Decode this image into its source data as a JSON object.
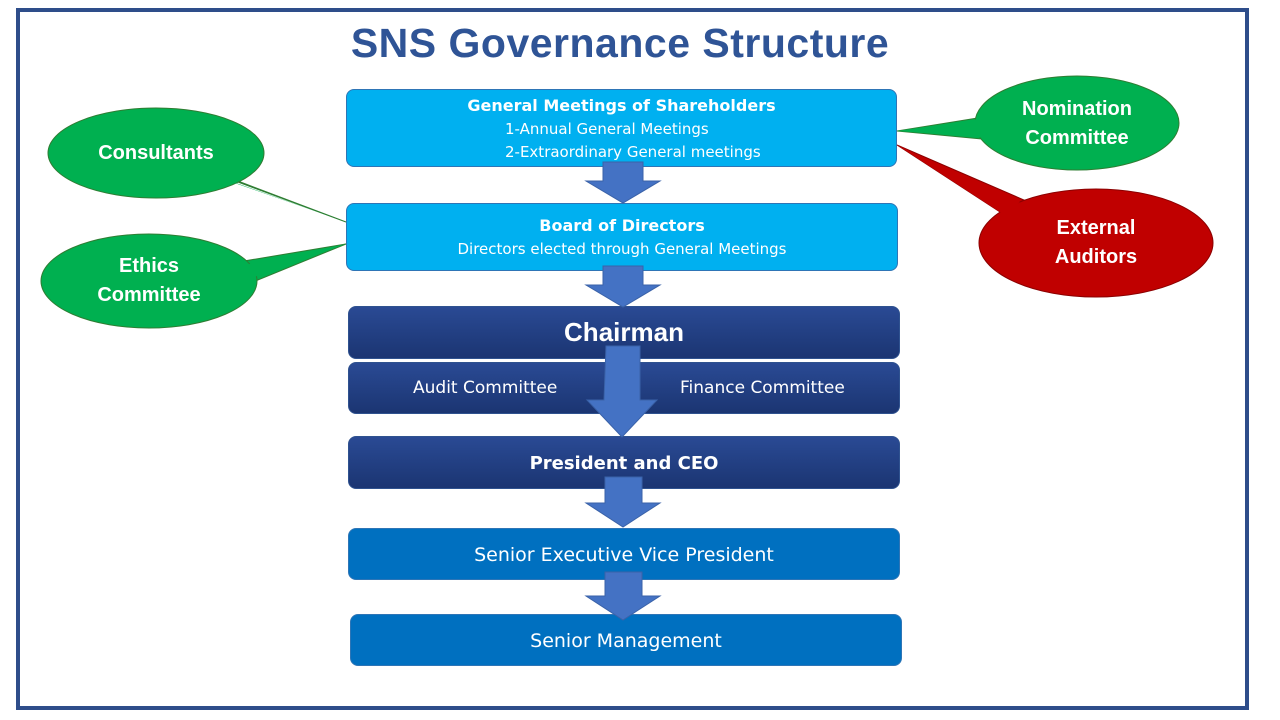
{
  "title": "SNS Governance Structure",
  "colors": {
    "title": "#2f5496",
    "frame": "#2e4d8a",
    "light_box": "#00b0f0",
    "dark_box": "#1f3c80",
    "mid_box": "#0070c0",
    "arrow": "#4472c4",
    "green_callout": "#00b050",
    "red_callout": "#c00000"
  },
  "boxes": {
    "shareholders": {
      "title": "General Meetings of Shareholders",
      "line1": "1-Annual General Meetings",
      "line2": "2-Extraordinary General meetings"
    },
    "board": {
      "title": "Board of Directors",
      "subtitle": "Directors elected through General Meetings"
    },
    "chairman": {
      "title": "Chairman"
    },
    "committees": {
      "audit": "Audit Committee",
      "finance": "Finance Committee"
    },
    "ceo": {
      "title": "President and CEO"
    },
    "sevp": {
      "title": "Senior Executive Vice President"
    },
    "senior_management": {
      "title": "Senior Management"
    }
  },
  "callouts": {
    "consultants": {
      "line1": "Consultants"
    },
    "ethics": {
      "line1": "Ethics",
      "line2": "Committee"
    },
    "nomination": {
      "line1": "Nomination",
      "line2": "Committee"
    },
    "auditors": {
      "line1": "External",
      "line2": "Auditors"
    }
  }
}
